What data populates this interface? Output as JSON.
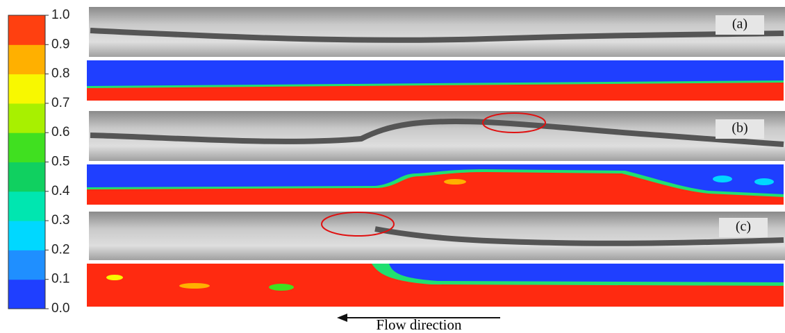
{
  "colorbar": {
    "ylim": [
      0,
      1
    ],
    "ticks": [
      {
        "value": 0,
        "label": "0.0"
      },
      {
        "value": 0.1,
        "label": "0.1"
      },
      {
        "value": 0.2,
        "label": "0.2"
      },
      {
        "value": 0.3,
        "label": "0.3"
      },
      {
        "value": 0.4,
        "label": "0.4"
      },
      {
        "value": 0.5,
        "label": "0.5"
      },
      {
        "value": 0.6,
        "label": "0.6"
      },
      {
        "value": 0.7,
        "label": "0.7"
      },
      {
        "value": 0.8,
        "label": "0.8"
      },
      {
        "value": 0.9,
        "label": "0.9"
      },
      {
        "value": 1,
        "label": "1.0"
      }
    ],
    "colors": [
      "#1f3fff",
      "#1f8fff",
      "#00d8ff",
      "#00e6b0",
      "#10d060",
      "#40e020",
      "#a8f000",
      "#f8f800",
      "#ffb000",
      "#ff4010"
    ]
  },
  "panels": [
    {
      "label": "(a)"
    },
    {
      "label": "(b)"
    },
    {
      "label": "(c)"
    }
  ],
  "flow_label": "Flow direction"
}
